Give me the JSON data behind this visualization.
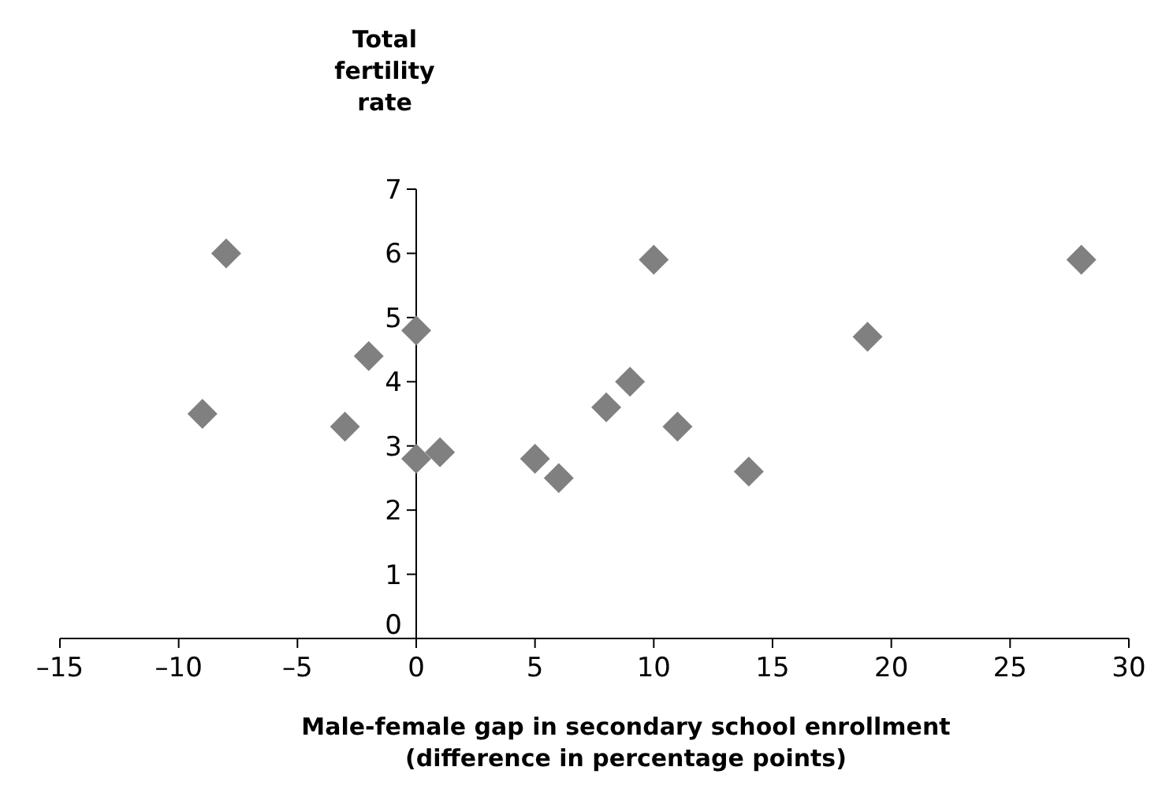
{
  "chart_data": {
    "type": "scatter",
    "ylabel": "Total\nfertility\nrate",
    "xlabel": "Male-female gap in secondary school enrollment\n(difference in percentage points)",
    "x": [
      -9,
      -8,
      -3,
      -2,
      0,
      0,
      1,
      5,
      6,
      8,
      9,
      10,
      11,
      14,
      19,
      28
    ],
    "values": [
      3.5,
      6.0,
      3.3,
      4.4,
      4.8,
      2.8,
      2.9,
      2.8,
      2.5,
      3.6,
      4.0,
      5.9,
      3.3,
      2.6,
      4.7,
      5.9
    ],
    "color": "#808080",
    "marker": "diamond",
    "xlim": [
      -15,
      30
    ],
    "xticks": [
      {
        "value": -15,
        "label": "–15"
      },
      {
        "value": -10,
        "label": "–10"
      },
      {
        "value": -5,
        "label": "–5"
      },
      0,
      5,
      10,
      15,
      20,
      25,
      30
    ],
    "ylim": [
      0,
      7
    ],
    "yticks": [
      0,
      1,
      2,
      3,
      4,
      5,
      6,
      7
    ],
    "grid": false
  }
}
